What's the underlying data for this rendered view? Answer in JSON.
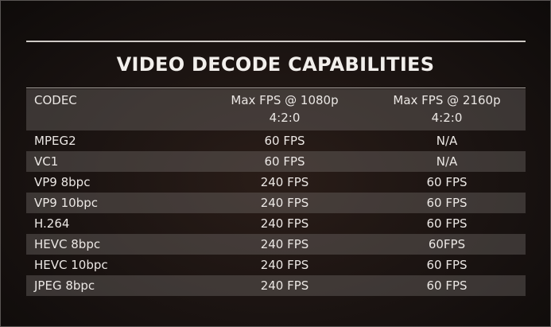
{
  "title": "VIDEO DECODE CAPABILITIES",
  "columns": [
    "CODEC",
    "Max FPS @ 1080p\n4:2:0",
    "Max FPS @ 2160p\n4:2:0"
  ],
  "rows": [
    {
      "codec": "MPEG2",
      "fps1080": "60 FPS",
      "fps2160": "N/A"
    },
    {
      "codec": "VC1",
      "fps1080": "60 FPS",
      "fps2160": "N/A"
    },
    {
      "codec": "VP9 8bpc",
      "fps1080": "240 FPS",
      "fps2160": "60 FPS"
    },
    {
      "codec": "VP9 10bpc",
      "fps1080": "240 FPS",
      "fps2160": "60 FPS"
    },
    {
      "codec": "H.264",
      "fps1080": "240 FPS",
      "fps2160": "60 FPS"
    },
    {
      "codec": "HEVC 8bpc",
      "fps1080": "240 FPS",
      "fps2160": "60FPS"
    },
    {
      "codec": "HEVC 10bpc",
      "fps1080": "240 FPS",
      "fps2160": "60 FPS"
    },
    {
      "codec": "JPEG 8bpc",
      "fps1080": "240 FPS",
      "fps2160": "60 FPS"
    }
  ]
}
